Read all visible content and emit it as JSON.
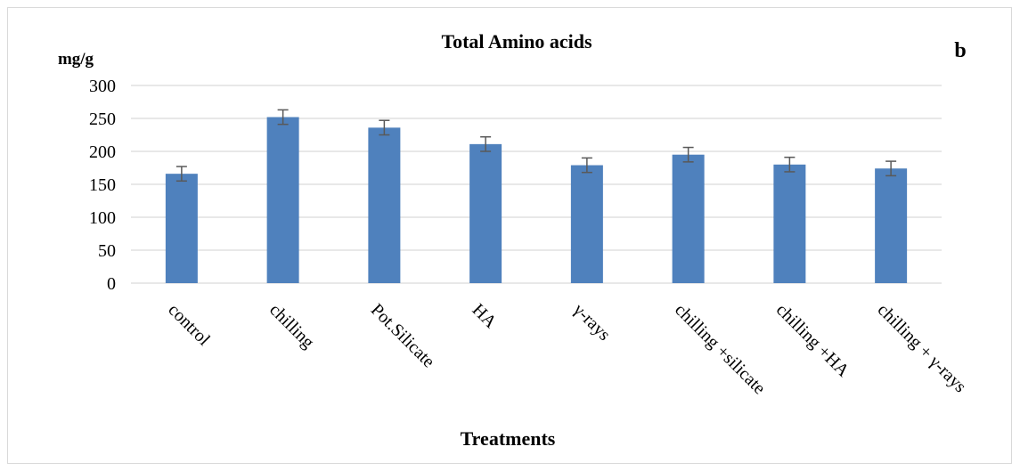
{
  "chart_data": {
    "type": "bar",
    "title": "Total Amino acids",
    "panel_label": "b",
    "ylabel": "mg/g",
    "xlabel": "Treatments",
    "categories": [
      "control",
      "chilling",
      "Pot.Silicate",
      "HA",
      "γ-rays",
      "chilling +silicate",
      "chilling +HA",
      "chilling + γ-rays"
    ],
    "values": [
      166,
      252,
      236,
      211,
      179,
      195,
      180,
      174
    ],
    "errors": [
      11,
      11,
      11,
      11,
      11,
      11,
      11,
      11
    ],
    "ylim": [
      0,
      300
    ],
    "yticks": [
      0,
      50,
      100,
      150,
      200,
      250,
      300
    ],
    "grid": true,
    "bar_color": "#4f81bd",
    "error_color": "#595959",
    "grid_color": "#d9d9d9"
  }
}
